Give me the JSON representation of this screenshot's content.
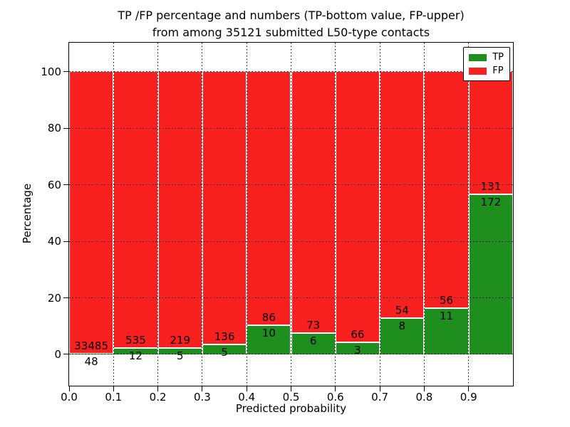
{
  "title": {
    "line1": "TP /FP percentage and numbers (TP-bottom value, FP-upper)",
    "line2": "from among 35121 submitted L50-type contacts"
  },
  "axes": {
    "xlabel": "Predicted probability",
    "ylabel": "Percentage",
    "xticks": [
      {
        "value": 0.0,
        "label": "0.0"
      },
      {
        "value": 0.1,
        "label": "0.1"
      },
      {
        "value": 0.2,
        "label": "0.2"
      },
      {
        "value": 0.3,
        "label": "0.3"
      },
      {
        "value": 0.4,
        "label": "0.4"
      },
      {
        "value": 0.5,
        "label": "0.5"
      },
      {
        "value": 0.6,
        "label": "0.6"
      },
      {
        "value": 0.7,
        "label": "0.7"
      },
      {
        "value": 0.8,
        "label": "0.8"
      },
      {
        "value": 0.9,
        "label": "0.9"
      }
    ],
    "yticks": [
      0,
      20,
      40,
      60,
      80,
      100
    ]
  },
  "legend": {
    "items": [
      {
        "label": "TP",
        "color": "#1e8e1e"
      },
      {
        "label": "FP",
        "color": "#f92020"
      }
    ]
  },
  "chart_data": {
    "type": "bar",
    "stacked": true,
    "title": "TP /FP percentage and numbers (TP-bottom value, FP-upper) from among 35121 submitted L50-type contacts",
    "total_submitted_contacts": 35121,
    "xlabel": "Predicted probability",
    "ylabel": "Percentage",
    "bin_edges": [
      0.0,
      0.1,
      0.2,
      0.3,
      0.4,
      0.5,
      0.6,
      0.7,
      0.8,
      0.9,
      1.0
    ],
    "series": [
      {
        "name": "TP",
        "color": "#1e8e1e",
        "counts": [
          48,
          12,
          5,
          5,
          10,
          6,
          3,
          8,
          11,
          172
        ]
      },
      {
        "name": "FP",
        "color": "#f92020",
        "counts": [
          33485,
          535,
          219,
          136,
          86,
          73,
          66,
          54,
          56,
          131
        ]
      }
    ],
    "tp_percent_of_bin": [
      0.14,
      2.19,
      2.23,
      3.55,
      10.42,
      7.59,
      4.35,
      12.9,
      16.42,
      56.77
    ],
    "xlim": [
      0.0,
      1.0
    ],
    "ylim": [
      -11.1,
      110.3
    ],
    "grid": "dotted",
    "legend_position": "upper right"
  }
}
